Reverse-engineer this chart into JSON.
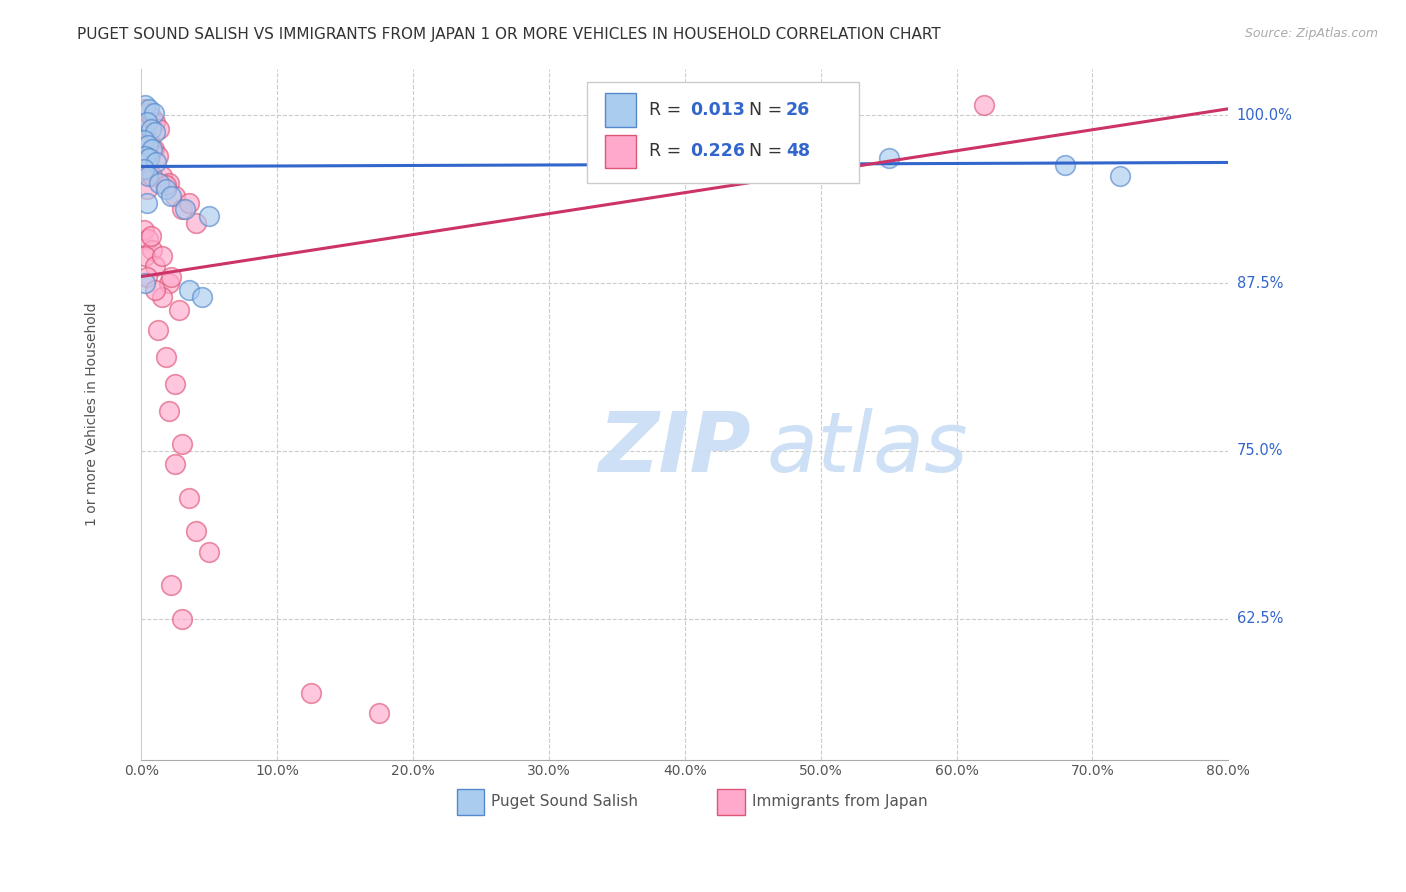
{
  "title": "PUGET SOUND SALISH VS IMMIGRANTS FROM JAPAN 1 OR MORE VEHICLES IN HOUSEHOLD CORRELATION CHART",
  "source": "Source: ZipAtlas.com",
  "ylabel": "1 or more Vehicles in Household",
  "xlim": [
    0.0,
    80.0
  ],
  "ylim": [
    52.0,
    103.5
  ],
  "xticks": [
    0.0,
    10.0,
    20.0,
    30.0,
    40.0,
    50.0,
    60.0,
    70.0,
    80.0
  ],
  "xticklabels": [
    "0.0%",
    "10.0%",
    "20.0%",
    "30.0%",
    "40.0%",
    "50.0%",
    "60.0%",
    "70.0%",
    "80.0%"
  ],
  "grid_color": "#cccccc",
  "background_color": "#ffffff",
  "blue_color": "#aaccee",
  "pink_color": "#ffaacc",
  "blue_edge_color": "#5588cc",
  "pink_edge_color": "#dd5577",
  "blue_line_color": "#3366cc",
  "pink_line_color": "#cc3366",
  "blue_R": 0.013,
  "blue_N": 26,
  "pink_R": 0.226,
  "pink_N": 48,
  "legend_label_blue": "Puget Sound Salish",
  "legend_label_pink": "Immigrants from Japan",
  "watermark_zip": "ZIP",
  "watermark_atlas": "atlas",
  "blue_line": [
    [
      0.0,
      96.2
    ],
    [
      80.0,
      96.5
    ]
  ],
  "pink_line": [
    [
      0.0,
      88.0
    ],
    [
      80.0,
      100.5
    ]
  ],
  "blue_scatter": [
    [
      0.3,
      100.8
    ],
    [
      0.6,
      100.5
    ],
    [
      0.9,
      100.2
    ],
    [
      0.4,
      99.5
    ],
    [
      0.7,
      99.0
    ],
    [
      1.0,
      98.8
    ],
    [
      0.2,
      98.2
    ],
    [
      0.5,
      97.8
    ],
    [
      0.8,
      97.5
    ],
    [
      0.3,
      97.0
    ],
    [
      0.6,
      96.8
    ],
    [
      1.1,
      96.5
    ],
    [
      0.2,
      96.0
    ],
    [
      0.5,
      95.5
    ],
    [
      1.3,
      95.0
    ],
    [
      1.8,
      94.5
    ],
    [
      2.2,
      94.0
    ],
    [
      0.4,
      93.5
    ],
    [
      3.2,
      93.0
    ],
    [
      5.0,
      92.5
    ],
    [
      0.3,
      87.5
    ],
    [
      3.5,
      87.0
    ],
    [
      4.5,
      86.5
    ],
    [
      55.0,
      96.8
    ],
    [
      68.0,
      96.3
    ],
    [
      72.0,
      95.5
    ]
  ],
  "pink_scatter": [
    [
      0.2,
      100.5
    ],
    [
      0.5,
      100.2
    ],
    [
      0.8,
      99.8
    ],
    [
      1.0,
      99.5
    ],
    [
      1.3,
      99.0
    ],
    [
      0.3,
      98.5
    ],
    [
      0.6,
      98.0
    ],
    [
      0.9,
      97.5
    ],
    [
      1.2,
      97.0
    ],
    [
      0.3,
      96.5
    ],
    [
      0.6,
      96.0
    ],
    [
      1.5,
      95.5
    ],
    [
      2.0,
      95.0
    ],
    [
      0.4,
      94.5
    ],
    [
      2.5,
      94.0
    ],
    [
      3.0,
      93.0
    ],
    [
      4.0,
      92.0
    ],
    [
      0.2,
      91.5
    ],
    [
      0.5,
      90.8
    ],
    [
      0.8,
      90.0
    ],
    [
      0.3,
      89.5
    ],
    [
      1.0,
      88.8
    ],
    [
      0.4,
      88.0
    ],
    [
      2.0,
      87.5
    ],
    [
      1.5,
      86.5
    ],
    [
      2.8,
      85.5
    ],
    [
      1.2,
      84.0
    ],
    [
      1.8,
      82.0
    ],
    [
      2.5,
      80.0
    ],
    [
      2.0,
      78.0
    ],
    [
      3.0,
      75.5
    ],
    [
      2.5,
      74.0
    ],
    [
      3.5,
      71.5
    ],
    [
      4.0,
      69.0
    ],
    [
      5.0,
      67.5
    ],
    [
      2.2,
      65.0
    ],
    [
      3.0,
      62.5
    ],
    [
      12.5,
      57.0
    ],
    [
      17.5,
      55.5
    ],
    [
      62.0,
      100.8
    ],
    [
      0.7,
      91.0
    ],
    [
      1.5,
      89.5
    ],
    [
      2.2,
      88.0
    ],
    [
      1.0,
      87.0
    ],
    [
      0.4,
      96.5
    ],
    [
      0.8,
      95.5
    ],
    [
      1.8,
      94.8
    ],
    [
      3.5,
      93.5
    ]
  ]
}
